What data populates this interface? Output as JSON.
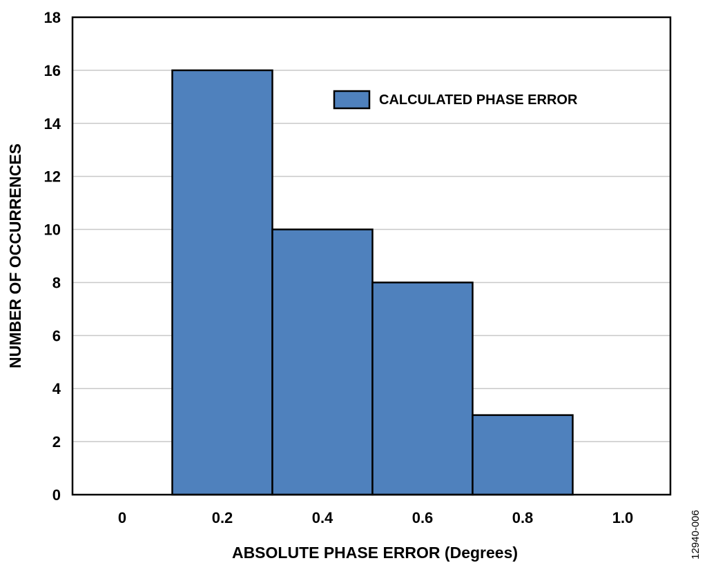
{
  "chart_data": {
    "type": "bar",
    "title": "",
    "xlabel": "ABSOLUTE PHASE ERROR (Degrees)",
    "ylabel": "NUMBER OF OCCURRENCES",
    "categories": [
      "0",
      "0.2",
      "0.4",
      "0.6",
      "0.8",
      "1.0"
    ],
    "series": [
      {
        "name": "CALCULATED PHASE ERROR",
        "values": [
          0,
          16,
          10,
          8,
          3,
          0
        ]
      }
    ],
    "ylim": [
      0,
      18
    ],
    "yticks": [
      "0",
      "2",
      "4",
      "6",
      "8",
      "10",
      "12",
      "14",
      "16",
      "18"
    ],
    "grid": true,
    "legend_position": "top-right",
    "figure_id": "12940-006",
    "colors": {
      "bar": "#4f81bd",
      "grid": "#c8c8c8",
      "border": "#000000"
    }
  }
}
